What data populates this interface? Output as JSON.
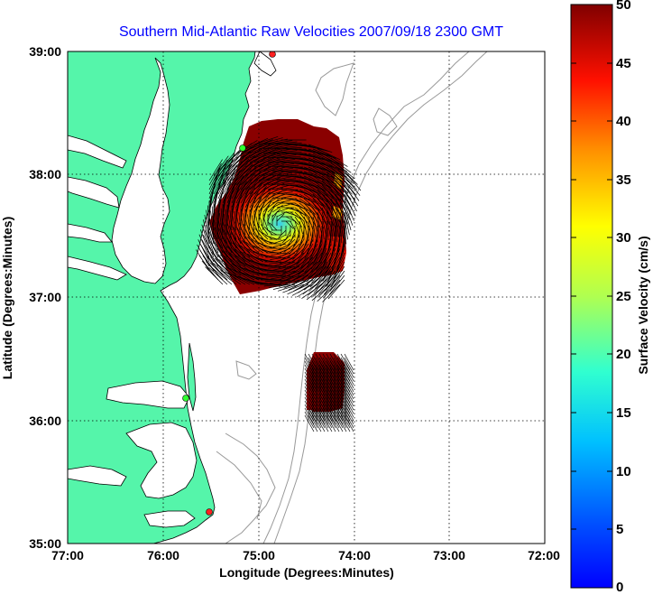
{
  "figure": {
    "title": "Southern Mid-Atlantic Raw Velocities 2007/09/18 2300 GMT",
    "xlabel": "Longitude (Degrees:Minutes)",
    "ylabel": "Latitude (Degrees:Minutes)",
    "x_ticks": [
      "77:00",
      "76:00",
      "75:00",
      "74:00",
      "73:00",
      "72:00"
    ],
    "y_ticks": [
      "39:00",
      "38:00",
      "37:00",
      "36:00",
      "35:00"
    ],
    "colorbar": {
      "label": "Surface Velocity (cm/s)",
      "ticks": [
        "50",
        "45",
        "40",
        "35",
        "30",
        "25",
        "20",
        "15",
        "10",
        "5",
        "0"
      ]
    }
  },
  "chart_data": {
    "type": "heatmap",
    "title": "Southern Mid-Atlantic Raw Velocities 2007/09/18 2300 GMT",
    "xlabel": "Longitude (Degrees:Minutes)",
    "ylabel": "Latitude (Degrees:Minutes)",
    "xlim": [
      -77,
      -72
    ],
    "ylim": [
      35,
      39
    ],
    "grid": true,
    "colorbar": {
      "label": "Surface Velocity (cm/s)",
      "range": [
        0,
        50
      ],
      "colormap": "jet"
    },
    "stations": [
      {
        "lon": -75.13,
        "lat": 38.98
      },
      {
        "lon": -75.18,
        "lat": 38.2
      },
      {
        "lon": -75.73,
        "lat": 36.18
      },
      {
        "lon": -75.48,
        "lat": 35.25
      }
    ],
    "colors": {
      "land": "#55f5aa",
      "water": "#ffffff",
      "grid": "#000000",
      "title": "#0000ff",
      "bathymetry": "#999999"
    }
  }
}
